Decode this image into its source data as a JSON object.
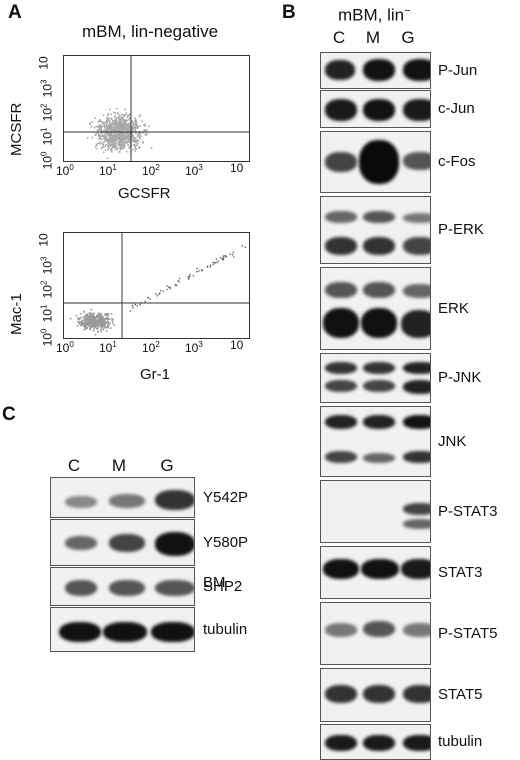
{
  "panel_a": {
    "letter": "A",
    "title": "mBM, lin-negative",
    "plot1": {
      "ylabel": "MCSFR",
      "xlabel": "GCSFR"
    },
    "plot2": {
      "ylabel": "Mac-1",
      "xlabel": "Gr-1"
    },
    "tick_exponents": [
      "0",
      "1",
      "2",
      "3",
      "4"
    ],
    "tick_base": "10",
    "last_tick": "10"
  },
  "panel_b": {
    "letter": "B",
    "header": "mBM, lin",
    "header_sup": "−",
    "lanes": [
      "C",
      "M",
      "G"
    ],
    "blots": [
      {
        "label": "P-Jun"
      },
      {
        "label": "c-Jun"
      },
      {
        "label": "c-Fos"
      },
      {
        "label": "P-ERK"
      },
      {
        "label": "ERK"
      },
      {
        "label": "P-JNK"
      },
      {
        "label": "JNK"
      },
      {
        "label": "P-STAT3"
      },
      {
        "label": "STAT3"
      },
      {
        "label": "P-STAT5"
      },
      {
        "label": "STAT5"
      },
      {
        "label": "tubulin"
      }
    ]
  },
  "panel_c": {
    "letter": "C",
    "lanes": [
      "C",
      "M",
      "G"
    ],
    "blots": [
      {
        "label": "Y542P"
      },
      {
        "label": "Y580P"
      },
      {
        "label": "SHP2"
      },
      {
        "label": "tubulin"
      }
    ],
    "footer": "BM"
  }
}
